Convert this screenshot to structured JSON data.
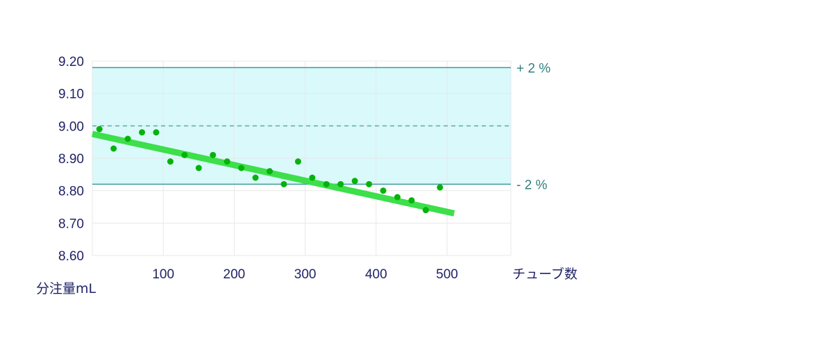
{
  "chart_data": {
    "type": "scatter",
    "xlabel": "チューブ数",
    "ylabel": "分注量mL",
    "xlim": [
      0,
      590
    ],
    "ylim": [
      8.6,
      9.2
    ],
    "x_ticks": [
      "100",
      "200",
      "300",
      "400",
      "500"
    ],
    "y_ticks": [
      "9.20",
      "9.10",
      "9.00",
      "8.90",
      "8.80",
      "8.70",
      "8.60"
    ],
    "grid": true,
    "target": 9.0,
    "limits": [
      {
        "label": "+ 2 %",
        "value": 9.18
      },
      {
        "label": "- 2 %",
        "value": 8.82
      }
    ],
    "points": [
      {
        "x": 10,
        "y": 8.99
      },
      {
        "x": 30,
        "y": 8.93
      },
      {
        "x": 50,
        "y": 8.96
      },
      {
        "x": 70,
        "y": 8.98
      },
      {
        "x": 90,
        "y": 8.98
      },
      {
        "x": 110,
        "y": 8.89
      },
      {
        "x": 130,
        "y": 8.91
      },
      {
        "x": 150,
        "y": 8.87
      },
      {
        "x": 170,
        "y": 8.91
      },
      {
        "x": 190,
        "y": 8.89
      },
      {
        "x": 210,
        "y": 8.87
      },
      {
        "x": 230,
        "y": 8.84
      },
      {
        "x": 250,
        "y": 8.86
      },
      {
        "x": 270,
        "y": 8.82
      },
      {
        "x": 290,
        "y": 8.89
      },
      {
        "x": 310,
        "y": 8.84
      },
      {
        "x": 330,
        "y": 8.82
      },
      {
        "x": 350,
        "y": 8.82
      },
      {
        "x": 370,
        "y": 8.83
      },
      {
        "x": 390,
        "y": 8.82
      },
      {
        "x": 410,
        "y": 8.8
      },
      {
        "x": 430,
        "y": 8.78
      },
      {
        "x": 450,
        "y": 8.77
      },
      {
        "x": 470,
        "y": 8.74
      },
      {
        "x": 490,
        "y": 8.81
      }
    ],
    "trend": {
      "x": [
        0,
        510
      ],
      "y": [
        8.975,
        8.73
      ]
    },
    "colors": {
      "band": "#d9f9fb",
      "limit_line": "#3c9c98",
      "target_line": "#5aaaa8",
      "grid": "#e8e8e8",
      "trend": "#3ddf4a",
      "point": "#05b30a",
      "axis_text": "#1f2366",
      "limit_text": "#2f7f7a"
    }
  }
}
